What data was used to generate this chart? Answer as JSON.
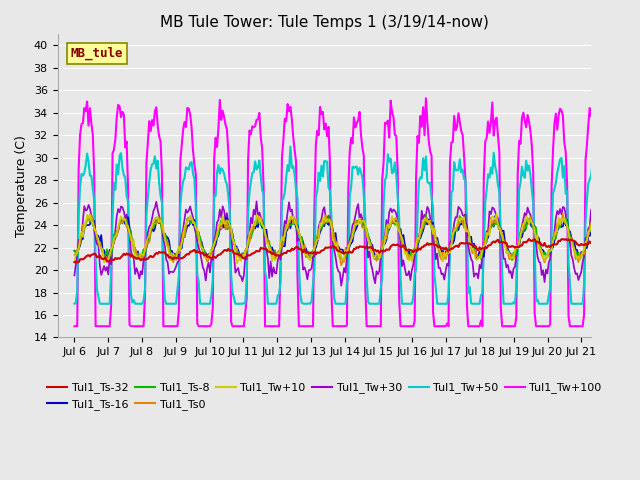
{
  "title": "MB Tule Tower: Tule Temps 1 (3/19/14-now)",
  "ylabel": "Temperature (C)",
  "xlim_days": [
    5.5,
    21.3
  ],
  "ylim": [
    14,
    41
  ],
  "yticks": [
    14,
    16,
    18,
    20,
    22,
    24,
    26,
    28,
    30,
    32,
    34,
    36,
    38,
    40
  ],
  "xtick_labels": [
    "Jul 6",
    "Jul 7",
    "Jul 8",
    "Jul 9",
    "Jul 10",
    "Jul 11",
    "Jul 12",
    "Jul 13",
    "Jul 14",
    "Jul 15",
    "Jul 16",
    "Jul 17",
    "Jul 18",
    "Jul 19",
    "Jul 20",
    "Jul 21"
  ],
  "xtick_positions": [
    6,
    7,
    8,
    9,
    10,
    11,
    12,
    13,
    14,
    15,
    16,
    17,
    18,
    19,
    20,
    21
  ],
  "bg_color": "#e8e8e8",
  "grid_color": "#ffffff",
  "series": [
    {
      "label": "Tul1_Ts-32",
      "color": "#cc0000",
      "lw": 1.5,
      "zorder": 5
    },
    {
      "label": "Tul1_Ts-16",
      "color": "#0000cc",
      "lw": 1.2,
      "zorder": 4
    },
    {
      "label": "Tul1_Ts-8",
      "color": "#00bb00",
      "lw": 1.2,
      "zorder": 4
    },
    {
      "label": "Tul1_Ts0",
      "color": "#dd8800",
      "lw": 1.2,
      "zorder": 4
    },
    {
      "label": "Tul1_Tw+10",
      "color": "#cccc00",
      "lw": 1.2,
      "zorder": 4
    },
    {
      "label": "Tul1_Tw+30",
      "color": "#9900cc",
      "lw": 1.2,
      "zorder": 3
    },
    {
      "label": "Tul1_Tw+50",
      "color": "#00cccc",
      "lw": 1.5,
      "zorder": 2
    },
    {
      "label": "Tul1_Tw+100",
      "color": "#ff00ff",
      "lw": 1.5,
      "zorder": 1
    }
  ],
  "annotation": {
    "text": "MB_tule",
    "color": "#880000",
    "bg": "#ffff99",
    "border": "#888800",
    "fontsize": 9
  },
  "title_fontsize": 11,
  "tick_fontsize": 8,
  "legend_fontsize": 8
}
